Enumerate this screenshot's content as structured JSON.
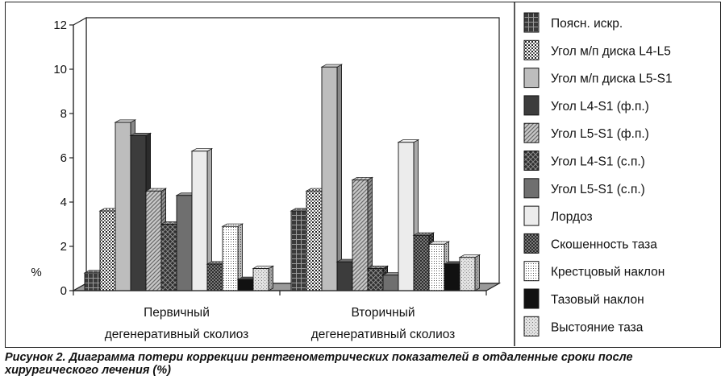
{
  "chart_data": {
    "type": "bar",
    "ylabel": "%",
    "ylim": [
      0,
      12
    ],
    "yticks": [
      0,
      2,
      4,
      6,
      8,
      10,
      12
    ],
    "categories": [
      [
        "Первичный",
        "дегенеративный сколиоз"
      ],
      [
        "Вторичный",
        "дегенеративный сколиоз"
      ]
    ],
    "legend_position": "right",
    "series": [
      {
        "name": "Поясн. искр.",
        "values": [
          0.8,
          3.6
        ],
        "pattern": "grid-dark"
      },
      {
        "name": "Угол м/п диска L4-L5",
        "values": [
          3.6,
          4.5
        ],
        "pattern": "dots"
      },
      {
        "name": "Угол м/п диска L5-S1",
        "values": [
          7.6,
          10.1
        ],
        "pattern": "light-gray"
      },
      {
        "name": "Угол L4-S1 (ф.п.)",
        "values": [
          7.0,
          1.3
        ],
        "pattern": "dark"
      },
      {
        "name": "Угол L5-S1 (ф.п.)",
        "values": [
          4.5,
          5.0
        ],
        "pattern": "diag-gray"
      },
      {
        "name": "Угол L4-S1 (с.п.)",
        "values": [
          3.0,
          1.0
        ],
        "pattern": "cross-dark"
      },
      {
        "name": "Угол L5-S1 (с.п.)",
        "values": [
          4.3,
          0.7
        ],
        "pattern": "mid-gray"
      },
      {
        "name": "Лордоз",
        "values": [
          6.3,
          6.7
        ],
        "pattern": "very-light"
      },
      {
        "name": "Скошенность таза",
        "values": [
          1.2,
          2.5
        ],
        "pattern": "check-dark"
      },
      {
        "name": "Крестцовый наклон",
        "values": [
          2.9,
          2.1
        ],
        "pattern": "fine-dots"
      },
      {
        "name": "Тазовый наклон",
        "values": [
          0.5,
          1.2
        ],
        "pattern": "black"
      },
      {
        "name": "Выстояние таза",
        "values": [
          1.0,
          1.5
        ],
        "pattern": "stipple"
      }
    ]
  },
  "caption": {
    "line1": "Рисунок 2. Диаграмма потери коррекции рентгенометрических показателей в отдаленные сроки после",
    "line2": "хирургического лечения (%)"
  }
}
